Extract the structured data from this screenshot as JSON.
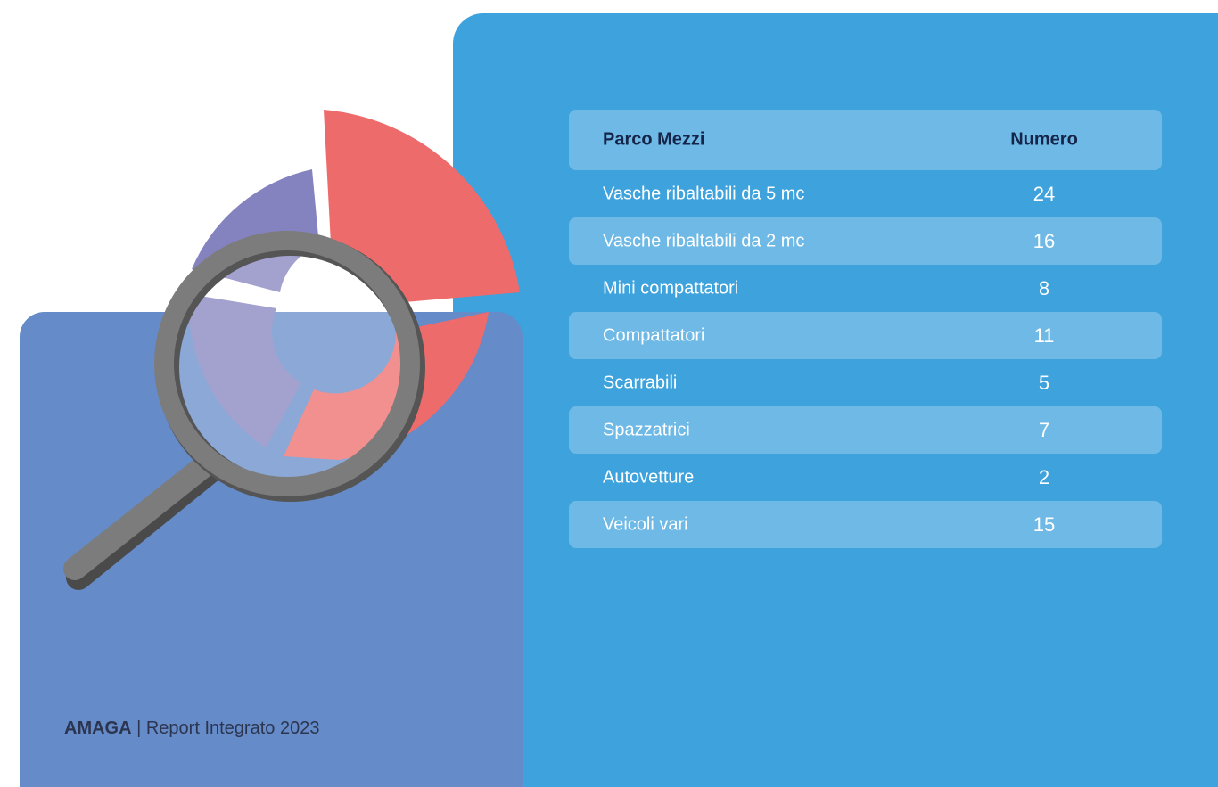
{
  "table": {
    "header": [
      "Parco Mezzi",
      "Numero"
    ],
    "rows": [
      [
        "Vasche ribaltabili da 5 mc",
        24
      ],
      [
        "Vasche ribaltabili da 2 mc",
        16
      ],
      [
        "Mini compattatori",
        8
      ],
      [
        "Compattatori",
        11
      ],
      [
        "Scarrabili",
        5
      ],
      [
        "Spazzatrici",
        7
      ],
      [
        "Autovetture",
        2
      ],
      [
        "Veicoli vari",
        15
      ]
    ]
  },
  "footer": {
    "brand": "AMAGA",
    "text": "| Report Integrato 2023"
  }
}
